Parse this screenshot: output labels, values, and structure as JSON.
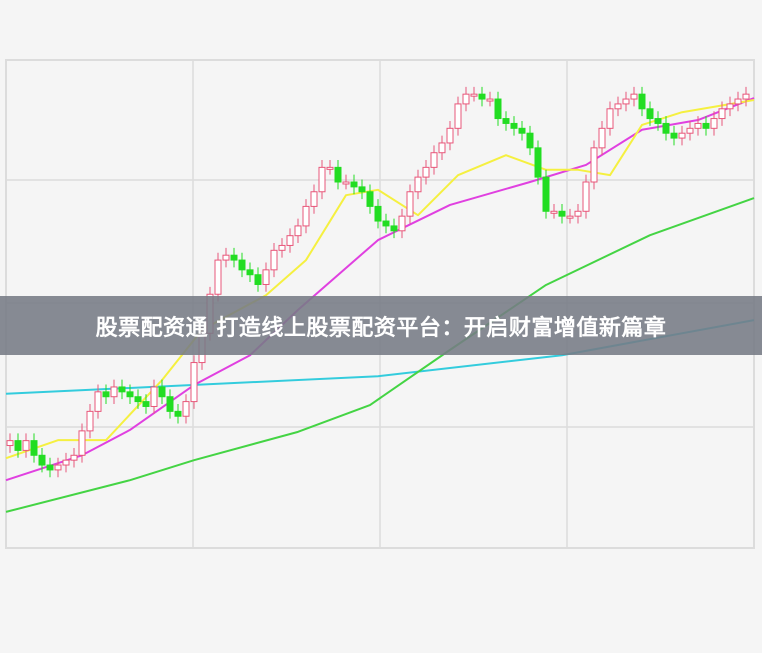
{
  "headline": "股票配资通 打造线上股票配资平台：开启财富增值新篇章",
  "chart_data": {
    "type": "candlestick",
    "title": "",
    "xlabel": "",
    "ylabel": "",
    "grid": true,
    "xlim": [
      -0.5,
      93
    ],
    "ylim": [
      0,
      100
    ],
    "colors": {
      "up": "#e8577a",
      "down": "#22dd22",
      "ma_yellow": "#f5f040",
      "ma_magenta": "#e040e0",
      "ma_green": "#44d444",
      "ma_cyan": "#33ccdd",
      "grid": "#dcdcdc",
      "background": "#f5f5f5"
    },
    "candles": {
      "closes": [
        22,
        20,
        22,
        19,
        17,
        16,
        17,
        18,
        19,
        24,
        28,
        32,
        31,
        33,
        32,
        31,
        30,
        29,
        33,
        31,
        28,
        27,
        30,
        38,
        44,
        52,
        59,
        60,
        59,
        57,
        56,
        54,
        57,
        61,
        62,
        64,
        66,
        70,
        73,
        78,
        78,
        75,
        75,
        74,
        73,
        70,
        67,
        66,
        65,
        68,
        73,
        76,
        78,
        81,
        83,
        86,
        91,
        93,
        93,
        92,
        92,
        88,
        87,
        86,
        85,
        82,
        76,
        69,
        69,
        68,
        68,
        69,
        75,
        82,
        86,
        90,
        91,
        92,
        93,
        90,
        88,
        87,
        85,
        84,
        85,
        86,
        87,
        86,
        88,
        90,
        91,
        92,
        93
      ]
    },
    "series": [
      {
        "color": "#33ccdd",
        "points": [
          [
            -0.5,
            31.6
          ],
          [
            46,
            35.2
          ],
          [
            69,
            39.5
          ],
          [
            93,
            46.7
          ]
        ]
      },
      {
        "color": "#44d444",
        "points": [
          [
            -0.5,
            7.4
          ],
          [
            15,
            13.9
          ],
          [
            23,
            18
          ],
          [
            36,
            23.8
          ],
          [
            45,
            29.3
          ],
          [
            55,
            40.6
          ],
          [
            67,
            53.9
          ],
          [
            80,
            64.1
          ],
          [
            93,
            71.7
          ]
        ]
      },
      {
        "color": "#e040e0",
        "points": [
          [
            -0.5,
            13.9
          ],
          [
            9,
            19
          ],
          [
            15,
            24.2
          ],
          [
            23,
            33.4
          ],
          [
            30,
            39.5
          ],
          [
            36,
            48.8
          ],
          [
            46,
            63.1
          ],
          [
            55,
            70.3
          ],
          [
            65,
            75
          ],
          [
            72,
            78.5
          ],
          [
            79,
            85.7
          ],
          [
            86,
            87.7
          ],
          [
            93,
            92.2
          ]
        ]
      },
      {
        "color": "#f5f040",
        "points": [
          [
            -0.5,
            18.4
          ],
          [
            6,
            22.1
          ],
          [
            12,
            22.1
          ],
          [
            19,
            34.4
          ],
          [
            24,
            44.7
          ],
          [
            32,
            51.8
          ],
          [
            37,
            59
          ],
          [
            42,
            72.3
          ],
          [
            46,
            73.4
          ],
          [
            51,
            68.2
          ],
          [
            56,
            76.4
          ],
          [
            62,
            80.5
          ],
          [
            67,
            77.5
          ],
          [
            71,
            77.5
          ],
          [
            75,
            76.4
          ],
          [
            79,
            86.7
          ],
          [
            84,
            89.3
          ],
          [
            93,
            91.8
          ]
        ]
      }
    ]
  }
}
